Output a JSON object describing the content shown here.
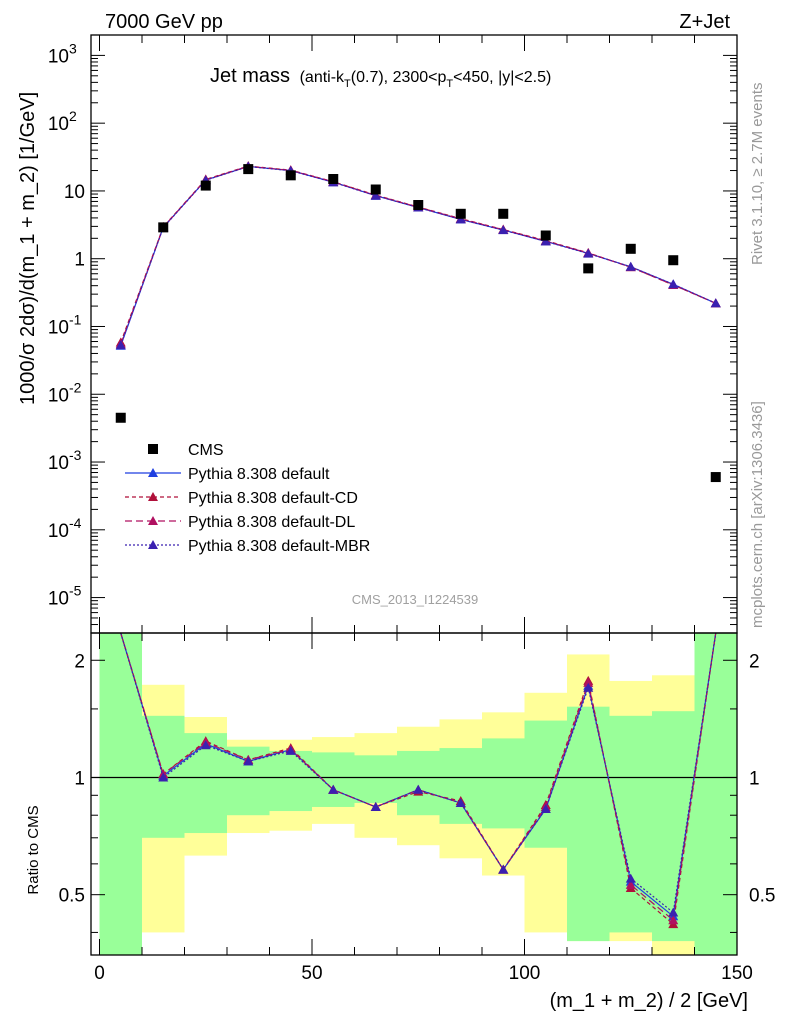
{
  "header": {
    "left": "7000 GeV pp",
    "right": "Z+Jet"
  },
  "plot": {
    "title_main": "Jet mass",
    "title_detail_pre": "(anti-k",
    "title_detail_sub1": "T",
    "title_detail_mid": "(0.7), 2300<p",
    "title_detail_sub2": "T",
    "title_detail_post": "<450, |y|<2.5)",
    "analysis_id": "CMS_2013_I1224539",
    "side_rivet": "Rivet 3.1.10, ≥ 2.7M events",
    "side_mcplots": "mcplots.cern.ch [arXiv:1306.3436]"
  },
  "axes": {
    "main_ylabel": "1000/σ 2dσ)/d(m_1 + m_2) [1/GeV]",
    "ratio_ylabel": "Ratio to CMS",
    "xlabel": "(m_1 + m_2) / 2 [GeV]",
    "main_yticks": [
      {
        "base": "10",
        "exp": "3",
        "v": 1000
      },
      {
        "base": "10",
        "exp": "2",
        "v": 100
      },
      {
        "base": "10",
        "exp": "",
        "v": 10
      },
      {
        "base": "1",
        "exp": "",
        "v": 1
      },
      {
        "base": "10",
        "exp": "-1",
        "v": 0.1
      },
      {
        "base": "10",
        "exp": "-2",
        "v": 0.01
      },
      {
        "base": "10",
        "exp": "-3",
        "v": 0.001
      },
      {
        "base": "10",
        "exp": "-4",
        "v": 0.0001
      },
      {
        "base": "10",
        "exp": "-5",
        "v": 1e-05
      }
    ],
    "ratio_yticks": [
      {
        "label": "2",
        "v": 2
      },
      {
        "label": "1",
        "v": 1
      },
      {
        "label": "0.5",
        "v": 0.5
      }
    ],
    "xticks": [
      {
        "label": "0",
        "v": 0
      },
      {
        "label": "50",
        "v": 50
      },
      {
        "label": "100",
        "v": 100
      },
      {
        "label": "150",
        "v": 150
      }
    ]
  },
  "legend": [
    {
      "label": "CMS",
      "color": "#000000",
      "style": "square"
    },
    {
      "label": "Pythia 8.308 default",
      "color": "#1f3fe0",
      "style": "solid"
    },
    {
      "label": "Pythia 8.308 default-CD",
      "color": "#b0103a",
      "style": "dashed-short"
    },
    {
      "label": "Pythia 8.308 default-DL",
      "color": "#b01060",
      "style": "dashed"
    },
    {
      "label": "Pythia 8.308 default-MBR",
      "color": "#3a20b0",
      "style": "dotted"
    }
  ],
  "chart_data": {
    "type": "line",
    "x_range": [
      -2,
      150
    ],
    "main_ylim": [
      3e-06,
      2000
    ],
    "main_yscale": "log",
    "ratio_ylim": [
      0.35,
      2.35
    ],
    "ratio_yscale": "log",
    "bins": [
      [
        0,
        10
      ],
      [
        10,
        20
      ],
      [
        20,
        30
      ],
      [
        30,
        40
      ],
      [
        40,
        50
      ],
      [
        50,
        60
      ],
      [
        60,
        70
      ],
      [
        70,
        80
      ],
      [
        80,
        90
      ],
      [
        90,
        100
      ],
      [
        100,
        110
      ],
      [
        110,
        120
      ],
      [
        120,
        130
      ],
      [
        130,
        140
      ],
      [
        140,
        150
      ]
    ],
    "x": [
      5,
      15,
      25,
      35,
      45,
      55,
      65,
      75,
      85,
      95,
      105,
      115,
      125,
      135,
      145
    ],
    "cms": [
      0.0045,
      2.9,
      12,
      21,
      17,
      15,
      10.5,
      6.2,
      4.6,
      4.6,
      2.2,
      0.72,
      1.4,
      0.95,
      0.0006
    ],
    "series": [
      {
        "name": "Pythia 8.308 default",
        "values": [
          0.052,
          2.9,
          14.5,
          23,
          20,
          13.5,
          8.5,
          5.7,
          3.8,
          2.65,
          1.8,
          1.2,
          0.76,
          0.42,
          0.22
        ]
      },
      {
        "name": "Pythia 8.308 default-CD",
        "values": [
          0.058,
          2.95,
          14.8,
          23.3,
          20.3,
          13.7,
          8.7,
          5.8,
          3.9,
          2.7,
          1.85,
          1.22,
          0.75,
          0.41,
          0.22
        ]
      },
      {
        "name": "Pythia 8.308 default-DL",
        "values": [
          0.055,
          2.92,
          14.6,
          23.1,
          20.1,
          13.6,
          8.6,
          5.75,
          3.85,
          2.68,
          1.82,
          1.21,
          0.75,
          0.41,
          0.22
        ]
      },
      {
        "name": "Pythia 8.308 default-MBR",
        "values": [
          0.053,
          2.88,
          14.4,
          22.9,
          19.9,
          13.4,
          8.5,
          5.7,
          3.8,
          2.64,
          1.8,
          1.19,
          0.76,
          0.42,
          0.22
        ]
      }
    ],
    "ratio_series": [
      {
        "name": "Pythia 8.308 default",
        "values": [
          11.5,
          1.01,
          1.22,
          1.1,
          1.18,
          0.93,
          0.84,
          0.93,
          0.86,
          0.58,
          0.83,
          1.72,
          0.54,
          0.44,
          370
        ]
      },
      {
        "name": "Pythia 8.308 default-CD",
        "values": [
          12.9,
          1.02,
          1.24,
          1.11,
          1.19,
          0.93,
          0.84,
          0.92,
          0.87,
          0.58,
          0.85,
          1.77,
          0.52,
          0.42,
          370
        ]
      },
      {
        "name": "Pythia 8.308 default-DL",
        "values": [
          12.2,
          1.02,
          1.23,
          1.11,
          1.18,
          0.93,
          0.84,
          0.93,
          0.86,
          0.58,
          0.84,
          1.75,
          0.53,
          0.43,
          370
        ]
      },
      {
        "name": "Pythia 8.308 default-MBR",
        "values": [
          11.8,
          1.0,
          1.21,
          1.1,
          1.17,
          0.93,
          0.84,
          0.93,
          0.86,
          0.58,
          0.83,
          1.7,
          0.55,
          0.45,
          370
        ]
      }
    ],
    "uncertainty_bands": {
      "stat_green": [
        [
          0.35,
          2.35
        ],
        [
          0.7,
          1.44
        ],
        [
          0.72,
          1.3
        ],
        [
          0.8,
          1.2
        ],
        [
          0.82,
          1.17
        ],
        [
          0.84,
          1.16
        ],
        [
          0.86,
          1.14
        ],
        [
          0.8,
          1.17
        ],
        [
          0.76,
          1.19
        ],
        [
          0.74,
          1.26
        ],
        [
          0.66,
          1.4
        ],
        [
          0.38,
          1.52
        ],
        [
          0.4,
          1.44
        ],
        [
          0.38,
          1.48
        ],
        [
          0.35,
          2.35
        ]
      ],
      "syst_yellow": [
        [
          0.35,
          2.35
        ],
        [
          0.4,
          1.73
        ],
        [
          0.63,
          1.43
        ],
        [
          0.72,
          1.25
        ],
        [
          0.73,
          1.25
        ],
        [
          0.76,
          1.27
        ],
        [
          0.7,
          1.3
        ],
        [
          0.67,
          1.35
        ],
        [
          0.62,
          1.41
        ],
        [
          0.56,
          1.47
        ],
        [
          0.4,
          1.65
        ],
        [
          0.38,
          2.07
        ],
        [
          0.38,
          1.77
        ],
        [
          0.35,
          1.83
        ],
        [
          0.35,
          2.35
        ]
      ]
    },
    "grid": false,
    "legend_position": "lower-left"
  }
}
